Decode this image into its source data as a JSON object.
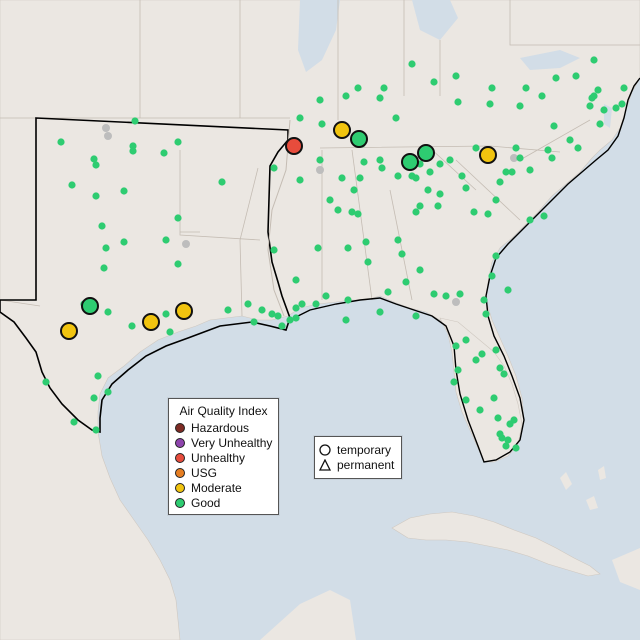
{
  "legend": {
    "title": "Air Quality Index",
    "items": [
      {
        "label": "Hazardous",
        "color": "#7e2b24"
      },
      {
        "label": "Very Unhealthy",
        "color": "#8e44ad"
      },
      {
        "label": "Unhealthy",
        "color": "#e74c3c"
      },
      {
        "label": "USG",
        "color": "#e67e22"
      },
      {
        "label": "Moderate",
        "color": "#f1c40f"
      },
      {
        "label": "Good",
        "color": "#2ecc71"
      }
    ]
  },
  "type_legend": {
    "temporary": "temporary",
    "permanent": "permanent"
  },
  "colors": {
    "water": "#c9d8e6",
    "land": "#ebe7e2",
    "no_data": "#bdbdbd"
  }
}
